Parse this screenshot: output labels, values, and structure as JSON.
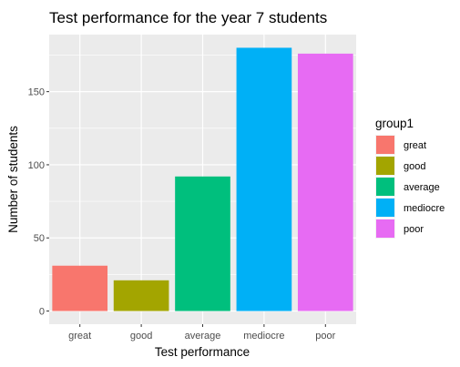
{
  "chart_data": {
    "type": "bar",
    "title": "Test performance for the year 7 students",
    "xlabel": "Test performance",
    "ylabel": "Number of students",
    "categories": [
      "great",
      "good",
      "average",
      "mediocre",
      "poor"
    ],
    "values": [
      31,
      21,
      92,
      180,
      176
    ],
    "colors": [
      "#F8766D",
      "#A3A500",
      "#00BF7D",
      "#00B0F6",
      "#E76BF3"
    ],
    "ylim": [
      -9,
      189
    ],
    "yticks": [
      0,
      50,
      100,
      150
    ],
    "ytick_labels": [
      "0",
      "50",
      "100",
      "150"
    ],
    "grid": true,
    "panel_background": "#EBEBEB",
    "grid_color": "#FFFFFF",
    "legend": {
      "title": "group1",
      "position": "right",
      "entries": [
        "great",
        "good",
        "average",
        "mediocre",
        "poor"
      ]
    }
  }
}
